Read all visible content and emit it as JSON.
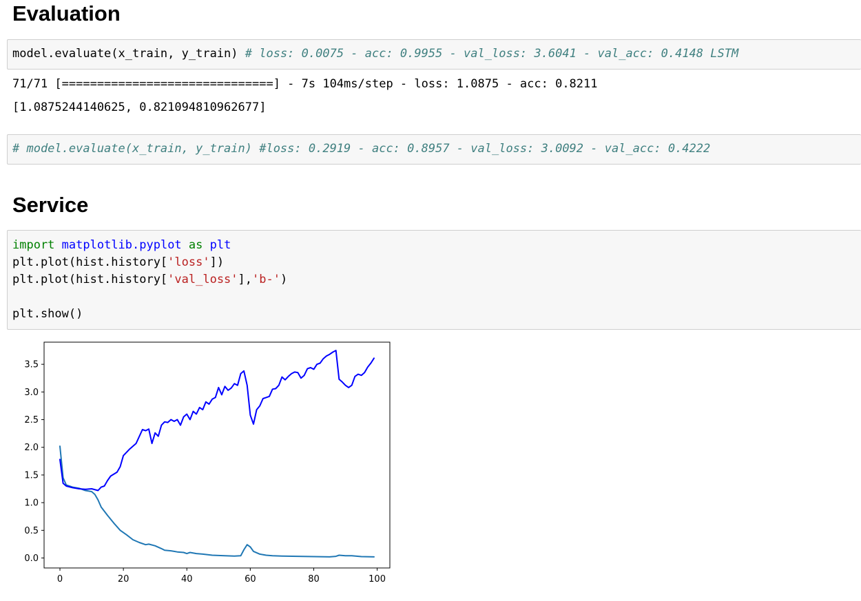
{
  "evaluation": {
    "heading": "Evaluation",
    "cell1": {
      "code": "model.evaluate(x_train, y_train) ",
      "comment": "# loss: 0.0075 - acc: 0.9955 - val_loss: 3.6041 - val_acc: 0.4148 LSTM"
    },
    "output": {
      "line1": "71/71 [==============================] - 7s 104ms/step - loss: 1.0875 - acc: 0.8211",
      "line2": "[1.0875244140625, 0.821094810962677]"
    },
    "cell2": {
      "comment": "# model.evaluate(x_train, y_train) #loss: 0.2919 - acc: 0.8957 - val_loss: 3.0092 - val_acc: 0.4222"
    }
  },
  "service": {
    "heading": "Service",
    "code": {
      "l1_import": "import",
      "l1_module": "matplotlib.pyplot",
      "l1_as": "as",
      "l1_alias": "plt",
      "l2_pre": "plt.plot(hist.history[",
      "l2_str": "'loss'",
      "l2_post": "])",
      "l3_pre": "plt.plot(hist.history[",
      "l3_str1": "'val_loss'",
      "l3_mid": "],",
      "l3_str2": "'b-'",
      "l3_post": ")",
      "l5": "plt.show()"
    }
  },
  "chart_data": {
    "type": "line",
    "xlim": [
      -5,
      104
    ],
    "ylim": [
      -0.18,
      3.9
    ],
    "xticks": [
      0,
      20,
      40,
      60,
      80,
      100
    ],
    "yticks": [
      0.0,
      0.5,
      1.0,
      1.5,
      2.0,
      2.5,
      3.0,
      3.5
    ],
    "ytick_labels": [
      "0.0",
      "0.5",
      "1.0",
      "1.5",
      "2.0",
      "2.5",
      "3.0",
      "3.5"
    ],
    "grid": false,
    "series": [
      {
        "color": "#1f77b4",
        "x": [
          0,
          1,
          2,
          4,
          6,
          8,
          10,
          11,
          12,
          13,
          15,
          17,
          19,
          21,
          23,
          25,
          27,
          28,
          30,
          32,
          33,
          35,
          37,
          39,
          40,
          41,
          43,
          45,
          48,
          52,
          55,
          57,
          58,
          59,
          60,
          61,
          63,
          65,
          67,
          70,
          75,
          80,
          85,
          87,
          88,
          90,
          92,
          95,
          99
        ],
        "y": [
          2.02,
          1.45,
          1.32,
          1.28,
          1.26,
          1.22,
          1.2,
          1.15,
          1.05,
          0.92,
          0.77,
          0.63,
          0.5,
          0.42,
          0.33,
          0.28,
          0.24,
          0.25,
          0.22,
          0.17,
          0.14,
          0.13,
          0.11,
          0.1,
          0.08,
          0.1,
          0.08,
          0.07,
          0.05,
          0.04,
          0.035,
          0.04,
          0.15,
          0.24,
          0.2,
          0.12,
          0.07,
          0.05,
          0.04,
          0.035,
          0.03,
          0.025,
          0.02,
          0.03,
          0.05,
          0.04,
          0.04,
          0.025,
          0.02
        ]
      },
      {
        "color": "#0000ff",
        "x": [
          0,
          1,
          2,
          4,
          6,
          8,
          10,
          12,
          13,
          14,
          15,
          16,
          18,
          19,
          20,
          22,
          24,
          26,
          27,
          28,
          29,
          30,
          31,
          32,
          33,
          34,
          35,
          36,
          37,
          38,
          39,
          40,
          41,
          42,
          43,
          44,
          45,
          46,
          47,
          48,
          49,
          50,
          51,
          52,
          53,
          54,
          55,
          56,
          57,
          58,
          59,
          60,
          61,
          62,
          63,
          64,
          65,
          66,
          67,
          68,
          69,
          70,
          71,
          72,
          73,
          74,
          75,
          76,
          77,
          78,
          79,
          80,
          81,
          82,
          83,
          84,
          85,
          86,
          87,
          88,
          89,
          90,
          91,
          92,
          93,
          94,
          95,
          96,
          97,
          98,
          99
        ],
        "y": [
          1.78,
          1.35,
          1.3,
          1.27,
          1.25,
          1.24,
          1.25,
          1.22,
          1.28,
          1.3,
          1.4,
          1.48,
          1.55,
          1.65,
          1.85,
          1.97,
          2.07,
          2.32,
          2.3,
          2.33,
          2.07,
          2.26,
          2.2,
          2.4,
          2.46,
          2.45,
          2.5,
          2.47,
          2.5,
          2.4,
          2.55,
          2.6,
          2.5,
          2.65,
          2.6,
          2.72,
          2.68,
          2.82,
          2.78,
          2.87,
          2.9,
          3.08,
          2.95,
          3.1,
          3.03,
          3.07,
          3.15,
          3.12,
          3.33,
          3.38,
          3.12,
          2.58,
          2.42,
          2.68,
          2.75,
          2.88,
          2.9,
          2.92,
          3.05,
          3.06,
          3.12,
          3.27,
          3.22,
          3.28,
          3.33,
          3.36,
          3.35,
          3.25,
          3.3,
          3.42,
          3.44,
          3.41,
          3.5,
          3.52,
          3.6,
          3.65,
          3.68,
          3.72,
          3.75,
          3.23,
          3.18,
          3.12,
          3.08,
          3.12,
          3.28,
          3.32,
          3.3,
          3.35,
          3.45,
          3.52,
          3.61
        ]
      }
    ]
  }
}
